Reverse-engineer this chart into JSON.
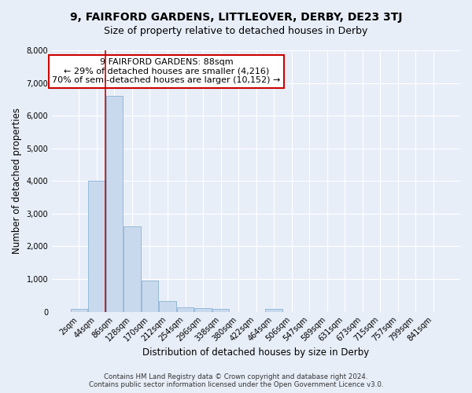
{
  "title": "9, FAIRFORD GARDENS, LITTLEOVER, DERBY, DE23 3TJ",
  "subtitle": "Size of property relative to detached houses in Derby",
  "xlabel": "Distribution of detached houses by size in Derby",
  "ylabel": "Number of detached properties",
  "bar_labels": [
    "2sqm",
    "44sqm",
    "86sqm",
    "128sqm",
    "170sqm",
    "212sqm",
    "254sqm",
    "296sqm",
    "338sqm",
    "380sqm",
    "422sqm",
    "464sqm",
    "506sqm",
    "547sqm",
    "589sqm",
    "631sqm",
    "673sqm",
    "715sqm",
    "757sqm",
    "799sqm",
    "841sqm"
  ],
  "bar_heights": [
    75,
    4000,
    6600,
    2600,
    950,
    320,
    130,
    100,
    75,
    0,
    0,
    75,
    0,
    0,
    0,
    0,
    0,
    0,
    0,
    0,
    0
  ],
  "bar_color": "#c9d9ed",
  "bar_edge_color": "#8ab4d4",
  "ylim": [
    0,
    8000
  ],
  "red_line_x": 1.5,
  "annotation_text_line1": "9 FAIRFORD GARDENS: 88sqm",
  "annotation_text_line2": "← 29% of detached houses are smaller (4,216)",
  "annotation_text_line3": "70% of semi-detached houses are larger (10,152) →",
  "annotation_box_color": "#ffffff",
  "annotation_border_color": "#cc0000",
  "footer_line1": "Contains HM Land Registry data © Crown copyright and database right 2024.",
  "footer_line2": "Contains public sector information licensed under the Open Government Licence v3.0.",
  "bg_color": "#e8eef8",
  "title_fontsize": 10,
  "subtitle_fontsize": 9,
  "yticks": [
    0,
    1000,
    2000,
    3000,
    4000,
    5000,
    6000,
    7000,
    8000
  ]
}
